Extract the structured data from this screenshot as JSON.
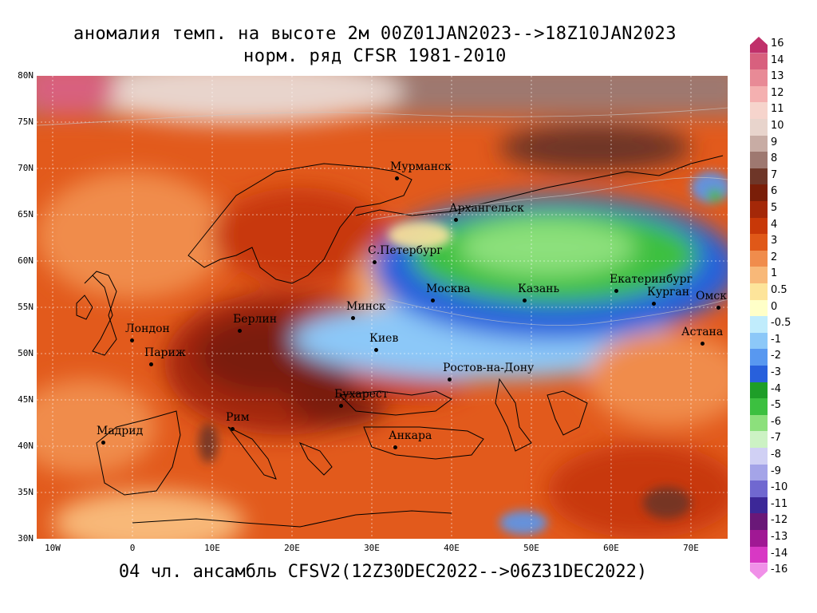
{
  "title_line1": "аномалия темп. на высоте 2м 00Z01JAN2023-->18Z10JAN2023",
  "title_line2": "норм. ряд CFSR 1981-2010",
  "footer": "04 чл. ансамбль CFSV2(12Z30DEC2022-->06Z31DEC2022)",
  "lat_labels": [
    "80N",
    "75N",
    "70N",
    "65N",
    "60N",
    "55N",
    "50N",
    "45N",
    "40N",
    "35N",
    "30N"
  ],
  "lon_labels": [
    "10W",
    "0",
    "10E",
    "20E",
    "30E",
    "40E",
    "50E",
    "60E",
    "70E"
  ],
  "cities": [
    {
      "name": "Мурманск",
      "lon": 33.1,
      "lat": 68.97
    },
    {
      "name": "Архангельск",
      "lon": 40.5,
      "lat": 64.5
    },
    {
      "name": "С.Петербург",
      "lon": 30.3,
      "lat": 59.9
    },
    {
      "name": "Москва",
      "lon": 37.6,
      "lat": 55.75
    },
    {
      "name": "Казань",
      "lon": 49.1,
      "lat": 55.8
    },
    {
      "name": "Екатеринбург",
      "lon": 60.6,
      "lat": 56.8
    },
    {
      "name": "Курган",
      "lon": 65.3,
      "lat": 55.4
    },
    {
      "name": "Омск",
      "lon": 73.4,
      "lat": 55.0
    },
    {
      "name": "Астана",
      "lon": 71.4,
      "lat": 51.1
    },
    {
      "name": "Минск",
      "lon": 27.6,
      "lat": 53.9
    },
    {
      "name": "Лондон",
      "lon": -0.1,
      "lat": 51.5
    },
    {
      "name": "Берлин",
      "lon": 13.4,
      "lat": 52.5
    },
    {
      "name": "Париж",
      "lon": 2.3,
      "lat": 48.9
    },
    {
      "name": "Киев",
      "lon": 30.5,
      "lat": 50.45
    },
    {
      "name": "Ростов-на-Дону",
      "lon": 39.7,
      "lat": 47.2
    },
    {
      "name": "Бухарест",
      "lon": 26.1,
      "lat": 44.4
    },
    {
      "name": "Рим",
      "lon": 12.5,
      "lat": 41.9
    },
    {
      "name": "Мадрид",
      "lon": -3.7,
      "lat": 40.4
    },
    {
      "name": "Анкара",
      "lon": 32.9,
      "lat": 39.9
    }
  ],
  "legend": [
    {
      "label": "16",
      "color": "#c0306a"
    },
    {
      "label": "14",
      "color": "#d8607e"
    },
    {
      "label": "13",
      "color": "#e88a96"
    },
    {
      "label": "12",
      "color": "#f4b0b0"
    },
    {
      "label": "11",
      "color": "#f6d4cc"
    },
    {
      "label": "10",
      "color": "#e8d4cc"
    },
    {
      "label": "9",
      "color": "#c8aca4"
    },
    {
      "label": "8",
      "color": "#9e7870"
    },
    {
      "label": "7",
      "color": "#6e3628"
    },
    {
      "label": "6",
      "color": "#7a1e08"
    },
    {
      "label": "5",
      "color": "#a42808"
    },
    {
      "label": "4",
      "color": "#c83808"
    },
    {
      "label": "3",
      "color": "#e05818"
    },
    {
      "label": "2",
      "color": "#f08c4c"
    },
    {
      "label": "1",
      "color": "#f8b878"
    },
    {
      "label": "0.5",
      "color": "#fde49a"
    },
    {
      "label": "0",
      "color": "#ffffc8"
    },
    {
      "label": "-0.5",
      "color": "#c0ecfc"
    },
    {
      "label": "-1",
      "color": "#8cc8f8"
    },
    {
      "label": "-2",
      "color": "#5898f0"
    },
    {
      "label": "-3",
      "color": "#2860dc"
    },
    {
      "label": "-4",
      "color": "#1e9e28"
    },
    {
      "label": "-5",
      "color": "#3cc040"
    },
    {
      "label": "-6",
      "color": "#8ce07c"
    },
    {
      "label": "-7",
      "color": "#ccf2c4"
    },
    {
      "label": "-8",
      "color": "#d0d0f4"
    },
    {
      "label": "-9",
      "color": "#a4a4e8"
    },
    {
      "label": "-10",
      "color": "#7068d0"
    },
    {
      "label": "-11",
      "color": "#3c2898"
    },
    {
      "label": "-12",
      "color": "#6a1878"
    },
    {
      "label": "-13",
      "color": "#a01894"
    },
    {
      "label": "-14",
      "color": "#d838c4"
    },
    {
      "label": "-16",
      "color": "#f090e8"
    }
  ]
}
